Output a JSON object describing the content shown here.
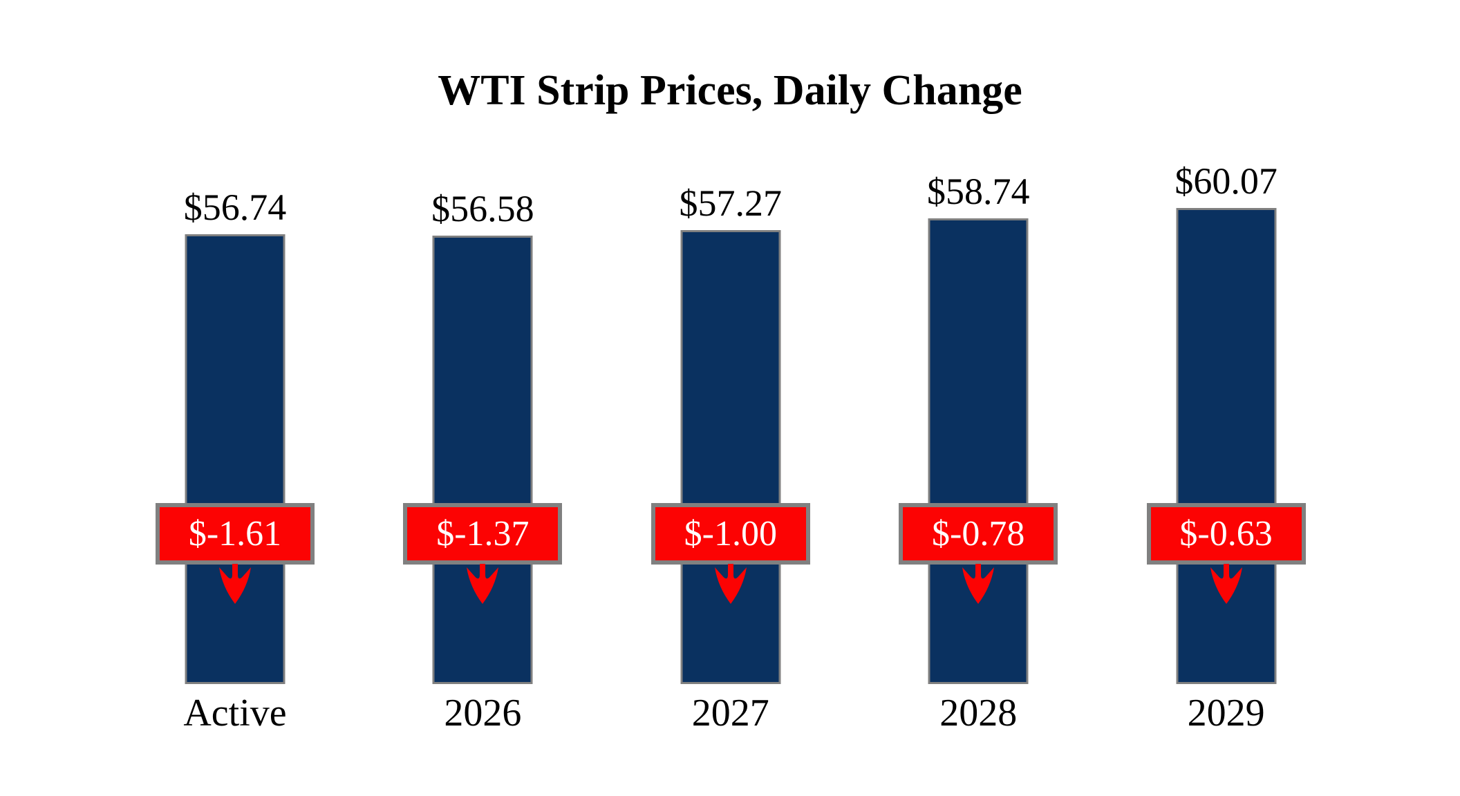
{
  "title": "WTI Strip Prices, Daily Change",
  "colors": {
    "background": "#ffffff",
    "bar_fill": "#0a3160",
    "bar_border": "#808080",
    "change_fill": "#fc0303",
    "change_border": "#808080",
    "change_text": "#ffffff",
    "label_text": "#000000",
    "arrow": "#fc0303"
  },
  "chart_data": {
    "type": "bar",
    "title": "WTI Strip Prices, Daily Change",
    "categories": [
      "Active",
      "2026",
      "2027",
      "2028",
      "2029"
    ],
    "series": [
      {
        "name": "Strip Price",
        "values": [
          56.74,
          56.58,
          57.27,
          58.74,
          60.07
        ]
      },
      {
        "name": "Daily Change",
        "values": [
          -1.61,
          -1.37,
          -1.0,
          -0.78,
          -0.63
        ]
      }
    ],
    "price_labels": [
      "$56.74",
      "$56.58",
      "$57.27",
      "$58.74",
      "$60.07"
    ],
    "change_labels": [
      "$-1.61",
      "$-1.37",
      "$-1.00",
      "$-0.78",
      "$-0.63"
    ],
    "baseline": 0,
    "ylim": [
      0,
      63
    ],
    "grid": false,
    "legend_position": "none",
    "xlabel": "",
    "ylabel": ""
  }
}
